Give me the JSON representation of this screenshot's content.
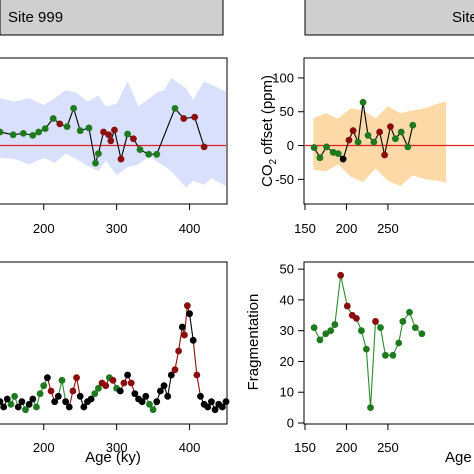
{
  "panels": {
    "site999": {
      "strip_label": "Site 999"
    },
    "site_right": {
      "strip_label": "Site"
    }
  },
  "colors": {
    "strip_fill": "#cfcfcf",
    "band_blue": "#d8e0fb",
    "band_orange": "#fcd9a6",
    "zero_line": "#e02020",
    "point_green": "#1f7a1f",
    "point_red": "#8b0e0e",
    "point_black": "#000000",
    "line_green": "#2e8b2e",
    "line_black": "#000000"
  },
  "chart_data": [
    {
      "id": "top-left",
      "type": "line",
      "title": "",
      "xlabel": "",
      "ylabel": "",
      "x_ticks": [
        200,
        300,
        400
      ],
      "xlim": [
        140,
        450
      ],
      "ylim": [
        -85,
        128
      ],
      "reference_line": 0,
      "band": {
        "x": [
          140,
          160,
          180,
          200,
          215,
          230,
          245,
          260,
          275,
          285,
          300,
          315,
          330,
          345,
          355,
          365,
          375,
          385,
          395,
          405,
          420,
          430,
          450
        ],
        "upper": [
          70,
          65,
          70,
          60,
          70,
          82,
          78,
          65,
          74,
          58,
          62,
          95,
          58,
          70,
          78,
          82,
          100,
          92,
          85,
          68,
          95,
          90,
          80
        ],
        "lower": [
          -18,
          -20,
          -28,
          -18,
          -26,
          -12,
          -20,
          -30,
          -38,
          -22,
          -44,
          -32,
          -28,
          -15,
          -24,
          -30,
          -38,
          -50,
          -62,
          -52,
          -58,
          -48,
          -60
        ]
      },
      "series": [
        {
          "values": [
            {
              "x": 140,
              "y": 20,
              "c": "g"
            },
            {
              "x": 158,
              "y": 16,
              "c": "g"
            },
            {
              "x": 172,
              "y": 18,
              "c": "g"
            },
            {
              "x": 185,
              "y": 15,
              "c": "g"
            },
            {
              "x": 193,
              "y": 20,
              "c": "g"
            },
            {
              "x": 202,
              "y": 25,
              "c": "g"
            },
            {
              "x": 213,
              "y": 40,
              "c": "g"
            },
            {
              "x": 222,
              "y": 32,
              "c": "r"
            },
            {
              "x": 232,
              "y": 28,
              "c": "g"
            },
            {
              "x": 241,
              "y": 55,
              "c": "g"
            },
            {
              "x": 250,
              "y": 22,
              "c": "g"
            },
            {
              "x": 262,
              "y": 26,
              "c": "g"
            },
            {
              "x": 271,
              "y": -26,
              "c": "g"
            },
            {
              "x": 275,
              "y": -12,
              "c": "g"
            },
            {
              "x": 282,
              "y": 20,
              "c": "r"
            },
            {
              "x": 289,
              "y": 16,
              "c": "r"
            },
            {
              "x": 292,
              "y": 7,
              "c": "r"
            },
            {
              "x": 297,
              "y": 23,
              "c": "r"
            },
            {
              "x": 306,
              "y": -20,
              "c": "r"
            },
            {
              "x": 315,
              "y": 17,
              "c": "g"
            },
            {
              "x": 323,
              "y": 10,
              "c": "r"
            },
            {
              "x": 332,
              "y": -6,
              "c": "g"
            },
            {
              "x": 344,
              "y": -13,
              "c": "g"
            },
            {
              "x": 355,
              "y": -13,
              "c": "g"
            },
            {
              "x": 380,
              "y": 55,
              "c": "g"
            },
            {
              "x": 392,
              "y": 40,
              "c": "r"
            },
            {
              "x": 407,
              "y": 42,
              "c": "r"
            },
            {
              "x": 420,
              "y": -2,
              "c": "r"
            }
          ]
        }
      ]
    },
    {
      "id": "top-right",
      "type": "line",
      "title": "",
      "xlabel": "",
      "ylabel": "CO2 offset (ppm)",
      "ylabel_main": "CO",
      "ylabel_sub": "2",
      "ylabel_rest": " offset (ppm)",
      "x_ticks": [
        150,
        200,
        250
      ],
      "y_ticks": [
        -50,
        0,
        50,
        100
      ],
      "xlim": [
        150,
        355
      ],
      "ylim": [
        -85,
        128
      ],
      "reference_line": 0,
      "band": {
        "x": [
          160,
          175,
          190,
          205,
          220,
          235,
          250,
          265,
          280,
          295,
          310,
          320
        ],
        "upper": [
          40,
          48,
          40,
          55,
          52,
          40,
          58,
          48,
          52,
          55,
          62,
          65
        ],
        "lower": [
          -36,
          -38,
          -28,
          -46,
          -54,
          -34,
          -52,
          -60,
          -44,
          -50,
          -52,
          -55
        ]
      },
      "series": [
        {
          "values": [
            {
              "x": 161,
              "y": -3,
              "c": "g"
            },
            {
              "x": 168,
              "y": -18,
              "c": "g"
            },
            {
              "x": 176,
              "y": -2,
              "c": "g"
            },
            {
              "x": 184,
              "y": -10,
              "c": "g"
            },
            {
              "x": 190,
              "y": -12,
              "c": "g"
            },
            {
              "x": 196,
              "y": -20,
              "c": "k"
            },
            {
              "x": 203,
              "y": 8,
              "c": "r"
            },
            {
              "x": 208,
              "y": 22,
              "c": "r"
            },
            {
              "x": 214,
              "y": 5,
              "c": "g"
            },
            {
              "x": 220,
              "y": 64,
              "c": "g"
            },
            {
              "x": 226,
              "y": 15,
              "c": "g"
            },
            {
              "x": 233,
              "y": 5,
              "c": "g"
            },
            {
              "x": 240,
              "y": 20,
              "c": "r"
            },
            {
              "x": 246,
              "y": -14,
              "c": "r"
            },
            {
              "x": 253,
              "y": 28,
              "c": "r"
            },
            {
              "x": 259,
              "y": 10,
              "c": "g"
            },
            {
              "x": 266,
              "y": 20,
              "c": "g"
            },
            {
              "x": 274,
              "y": -2,
              "c": "g"
            },
            {
              "x": 280,
              "y": 30,
              "c": "g"
            }
          ]
        }
      ]
    },
    {
      "id": "bottom-left",
      "type": "line",
      "title": "",
      "xlabel": "Age (ky)",
      "ylabel": "",
      "x_ticks": [
        200,
        300,
        400
      ],
      "xlim": [
        140,
        450
      ],
      "ylim": [
        0,
        60
      ],
      "series": [
        {
          "values": [
            {
              "x": 140,
              "y": 8,
              "c": "k"
            },
            {
              "x": 145,
              "y": 6,
              "c": "k"
            },
            {
              "x": 150,
              "y": 9,
              "c": "k"
            },
            {
              "x": 155,
              "y": 7,
              "c": "g"
            },
            {
              "x": 160,
              "y": 10,
              "c": "g"
            },
            {
              "x": 165,
              "y": 6,
              "c": "k"
            },
            {
              "x": 170,
              "y": 8,
              "c": "k"
            },
            {
              "x": 175,
              "y": 5,
              "c": "g"
            },
            {
              "x": 180,
              "y": 7,
              "c": "k"
            },
            {
              "x": 185,
              "y": 9,
              "c": "k"
            },
            {
              "x": 190,
              "y": 6,
              "c": "g"
            },
            {
              "x": 195,
              "y": 11,
              "c": "g"
            },
            {
              "x": 200,
              "y": 14,
              "c": "g"
            },
            {
              "x": 205,
              "y": 17,
              "c": "k"
            },
            {
              "x": 210,
              "y": 12,
              "c": "r"
            },
            {
              "x": 215,
              "y": 8,
              "c": "k"
            },
            {
              "x": 220,
              "y": 10,
              "c": "k"
            },
            {
              "x": 225,
              "y": 16,
              "c": "g"
            },
            {
              "x": 230,
              "y": 8,
              "c": "k"
            },
            {
              "x": 235,
              "y": 6,
              "c": "k"
            },
            {
              "x": 240,
              "y": 12,
              "c": "r"
            },
            {
              "x": 245,
              "y": 17,
              "c": "r"
            },
            {
              "x": 250,
              "y": 10,
              "c": "k"
            },
            {
              "x": 255,
              "y": 6,
              "c": "k"
            },
            {
              "x": 260,
              "y": 8,
              "c": "k"
            },
            {
              "x": 265,
              "y": 9,
              "c": "k"
            },
            {
              "x": 270,
              "y": 11,
              "c": "g"
            },
            {
              "x": 275,
              "y": 13,
              "c": "g"
            },
            {
              "x": 280,
              "y": 15,
              "c": "r"
            },
            {
              "x": 285,
              "y": 14,
              "c": "r"
            },
            {
              "x": 290,
              "y": 17,
              "c": "g"
            },
            {
              "x": 295,
              "y": 16,
              "c": "r"
            },
            {
              "x": 300,
              "y": 13,
              "c": "g"
            },
            {
              "x": 305,
              "y": 12,
              "c": "k"
            },
            {
              "x": 310,
              "y": 15,
              "c": "r"
            },
            {
              "x": 315,
              "y": 18,
              "c": "k"
            },
            {
              "x": 320,
              "y": 15,
              "c": "r"
            },
            {
              "x": 325,
              "y": 11,
              "c": "k"
            },
            {
              "x": 330,
              "y": 9,
              "c": "k"
            },
            {
              "x": 335,
              "y": 8,
              "c": "k"
            },
            {
              "x": 340,
              "y": 10,
              "c": "k"
            },
            {
              "x": 345,
              "y": 7,
              "c": "g"
            },
            {
              "x": 350,
              "y": 5,
              "c": "g"
            },
            {
              "x": 355,
              "y": 8,
              "c": "k"
            },
            {
              "x": 360,
              "y": 12,
              "c": "k"
            },
            {
              "x": 365,
              "y": 14,
              "c": "k"
            },
            {
              "x": 370,
              "y": 10,
              "c": "k"
            },
            {
              "x": 375,
              "y": 18,
              "c": "k"
            },
            {
              "x": 380,
              "y": 20,
              "c": "r"
            },
            {
              "x": 385,
              "y": 27,
              "c": "r"
            },
            {
              "x": 390,
              "y": 36,
              "c": "k"
            },
            {
              "x": 393,
              "y": 33,
              "c": "r"
            },
            {
              "x": 397,
              "y": 44,
              "c": "r"
            },
            {
              "x": 400,
              "y": 41,
              "c": "k"
            },
            {
              "x": 405,
              "y": 31,
              "c": "k"
            },
            {
              "x": 410,
              "y": 18,
              "c": "r"
            },
            {
              "x": 415,
              "y": 10,
              "c": "k"
            },
            {
              "x": 420,
              "y": 7,
              "c": "k"
            },
            {
              "x": 425,
              "y": 6,
              "c": "k"
            },
            {
              "x": 430,
              "y": 8,
              "c": "k"
            },
            {
              "x": 435,
              "y": 5,
              "c": "k"
            },
            {
              "x": 440,
              "y": 7,
              "c": "k"
            },
            {
              "x": 445,
              "y": 6,
              "c": "k"
            },
            {
              "x": 450,
              "y": 8,
              "c": "k"
            }
          ]
        }
      ]
    },
    {
      "id": "bottom-right",
      "type": "line",
      "title": "",
      "xlabel": "Age",
      "ylabel": "Fragmentation",
      "x_ticks": [
        150,
        200,
        250
      ],
      "y_ticks": [
        0,
        10,
        20,
        30,
        40,
        50
      ],
      "xlim": [
        150,
        355
      ],
      "ylim": [
        0,
        52
      ],
      "series": [
        {
          "values": [
            {
              "x": 161,
              "y": 31,
              "c": "g"
            },
            {
              "x": 168,
              "y": 27,
              "c": "g"
            },
            {
              "x": 175,
              "y": 29,
              "c": "g"
            },
            {
              "x": 181,
              "y": 30,
              "c": "g"
            },
            {
              "x": 186,
              "y": 32,
              "c": "g"
            },
            {
              "x": 193,
              "y": 48,
              "c": "r"
            },
            {
              "x": 201,
              "y": 38,
              "c": "r"
            },
            {
              "x": 207,
              "y": 35,
              "c": "r"
            },
            {
              "x": 212,
              "y": 34,
              "c": "r"
            },
            {
              "x": 218,
              "y": 30,
              "c": "g"
            },
            {
              "x": 224,
              "y": 24,
              "c": "g"
            },
            {
              "x": 229,
              "y": 5,
              "c": "g"
            },
            {
              "x": 235,
              "y": 33,
              "c": "r"
            },
            {
              "x": 241,
              "y": 31,
              "c": "g"
            },
            {
              "x": 247,
              "y": 22,
              "c": "g"
            },
            {
              "x": 256,
              "y": 22,
              "c": "g"
            },
            {
              "x": 263,
              "y": 26,
              "c": "g"
            },
            {
              "x": 268,
              "y": 33,
              "c": "g"
            },
            {
              "x": 276,
              "y": 36,
              "c": "g"
            },
            {
              "x": 283,
              "y": 31,
              "c": "g"
            },
            {
              "x": 291,
              "y": 29,
              "c": "g"
            }
          ]
        }
      ]
    }
  ]
}
